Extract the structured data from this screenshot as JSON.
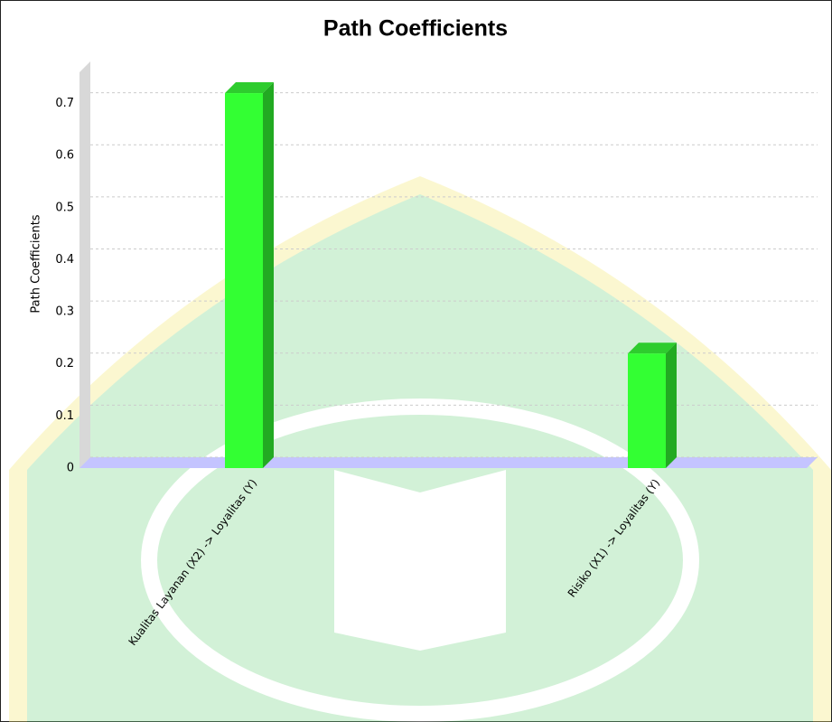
{
  "chart_data": {
    "type": "bar",
    "title": "Path Coefficients",
    "y_label": "Path Coefficients",
    "categories": [
      "Kualitas Layanan (X2) -> Loyalitas (Y)",
      "Risiko (X1) -> Loyalitas (Y)"
    ],
    "values": [
      0.72,
      0.22
    ],
    "color": "#33ff33",
    "ylim": [
      0,
      0.76
    ],
    "yticks": [
      0,
      0.1,
      0.2,
      0.3,
      0.4,
      0.5,
      0.6,
      0.7
    ],
    "grid": true
  }
}
